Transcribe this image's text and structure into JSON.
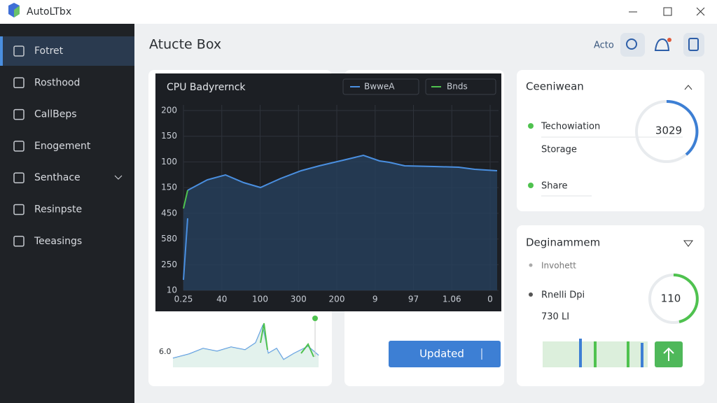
{
  "window": {
    "title": "AutoLTbx"
  },
  "sidebar": {
    "items": [
      "Fotret",
      "Rosthood",
      "CallBeps",
      "Enogement",
      "Senthace",
      "Resinpste",
      "Teeasings"
    ]
  },
  "header": {
    "title": "Atucte Box",
    "user": "Acto"
  },
  "chart_card": {
    "title": "CPU Badyrernck",
    "legend": [
      "BwweA",
      "Bnds"
    ],
    "y_labels": [
      "200",
      "150",
      "100",
      "150",
      "450",
      "580",
      "250",
      "10"
    ],
    "x_labels": [
      "0.25",
      "40",
      "100",
      "300",
      "200",
      "9",
      "97",
      "1.06",
      "0"
    ]
  },
  "spark_card": {
    "label": "6.0"
  },
  "action_card": {
    "button": "Updated"
  },
  "status_card": {
    "title": "Ceeniwean",
    "item1": "Techowiation",
    "value": "3029",
    "item2": "Storage",
    "item3": "Share"
  },
  "deg_card": {
    "title": "Deginammem",
    "item1": "Invohett",
    "item2": "Rnelli Dpi",
    "item3": "730 LI",
    "value": "110"
  }
}
